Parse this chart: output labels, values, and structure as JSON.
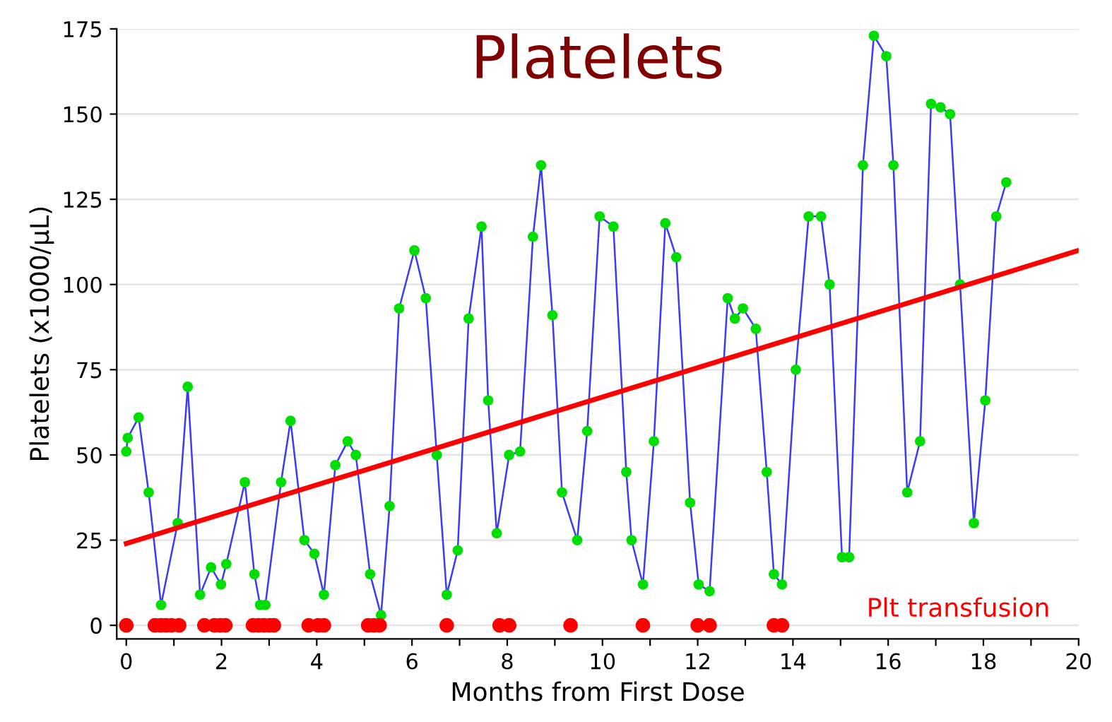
{
  "chart_data": {
    "type": "line",
    "title": "Platelets",
    "xlabel": "Months from First Dose",
    "ylabel": "Platelets (x1000/µL)",
    "xlim": [
      -0.2,
      20
    ],
    "ylim": [
      -4,
      175
    ],
    "xticks": [
      0,
      {
        "value": 1,
        "label": null
      },
      2,
      {
        "value": 3,
        "label": null
      },
      4,
      {
        "value": 5,
        "label": null
      },
      6,
      {
        "value": 7,
        "label": null
      },
      8,
      {
        "value": 9,
        "label": null
      },
      10,
      {
        "value": 11,
        "label": null
      },
      12,
      {
        "value": 13,
        "label": null
      },
      14,
      {
        "value": 15,
        "label": null
      },
      16,
      {
        "value": 17,
        "label": null
      },
      18,
      {
        "value": 19,
        "label": null
      },
      20
    ],
    "yticks": [
      0,
      25,
      50,
      75,
      100,
      125,
      150,
      175
    ],
    "grid": "y",
    "legend": false,
    "series": [
      {
        "color": "#3b3bf5",
        "marker": "circle",
        "x": [
          0,
          0.03,
          0.26,
          0.47,
          0.73,
          1.08,
          1.29,
          1.55,
          1.78,
          1.99,
          2.1,
          2.49,
          2.69,
          2.81,
          2.92,
          3.25,
          3.45,
          3.74,
          3.95,
          4.15,
          4.39,
          4.65,
          4.82,
          5.12,
          5.35,
          5.53,
          5.73,
          6.05,
          6.29,
          6.52,
          6.73,
          6.96,
          7.19,
          7.46,
          7.6,
          7.78,
          8.04,
          8.27,
          8.54,
          8.71,
          8.95,
          9.15,
          9.47,
          9.68,
          9.94,
          10.23,
          10.5,
          10.61,
          10.85,
          11.08,
          11.32,
          11.55,
          11.84,
          12.02,
          12.25,
          12.63,
          12.78,
          12.95,
          13.22,
          13.45,
          13.6,
          13.77,
          14.06,
          14.33,
          14.59,
          14.77,
          15.03,
          15.18,
          15.47,
          15.7,
          15.96,
          16.11,
          16.4,
          16.67,
          16.9,
          17.1,
          17.3,
          17.51,
          17.8,
          18.04,
          18.27,
          18.48
        ],
        "values": [
          51,
          55,
          61,
          39,
          6,
          30,
          70,
          9,
          17,
          12,
          18,
          42,
          15,
          6,
          6,
          42,
          60,
          25,
          21,
          9,
          47,
          54,
          50,
          15,
          3,
          35,
          93,
          110,
          96,
          50,
          9,
          22,
          90,
          117,
          66,
          27,
          50,
          51,
          114,
          135,
          91,
          39,
          25,
          57,
          120,
          117,
          45,
          25,
          12,
          54,
          118,
          108,
          36,
          12,
          10,
          96,
          90,
          93,
          87,
          45,
          15,
          12,
          75,
          120,
          120,
          100,
          20,
          20,
          135,
          173,
          167,
          135,
          39,
          54,
          153,
          152,
          150,
          100,
          30,
          66,
          120,
          130
        ],
        "colors": [
          "#00dd00",
          "#00dd00",
          "#00dd00",
          "#00dd00",
          "#00dd00",
          "#00dd00",
          "#00dd00",
          "#00dd00",
          "#00dd00",
          "#00dd00",
          "#00dd00",
          "#00dd00",
          "#00dd00",
          "#00dd00",
          "#00dd00",
          "#00dd00",
          "#00dd00",
          "#00dd00",
          "#00dd00",
          "#00dd00",
          "#00dd00",
          "#00dd00",
          "#00dd00",
          "#00dd00",
          "#00dd00",
          "#00dd00",
          "#00dd00",
          "#00dd00",
          "#00dd00",
          "#00dd00",
          "#00dd00",
          "#00dd00",
          "#00dd00",
          "#00dd00",
          "#00dd00",
          "#00dd00",
          "#00dd00",
          "#00dd00",
          "#00dd00",
          "#00dd00",
          "#00dd00",
          "#00dd00",
          "#00dd00",
          "#00dd00",
          "#00dd00",
          "#00dd00",
          "#00dd00",
          "#00dd00",
          "#00dd00",
          "#00dd00",
          "#00dd00",
          "#00dd00",
          "#00dd00",
          "#00dd00",
          "#00dd00",
          "#00dd00",
          "#00dd00",
          "#00dd00",
          "#00dd00",
          "#00dd00",
          "#00dd00",
          "#00dd00",
          "#00dd00",
          "#00dd00",
          "#00dd00",
          "#00dd00",
          "#00dd00",
          "#00dd00",
          "#00dd00",
          "#00dd00",
          "#00dd00",
          "#00dd00",
          "#00dd00",
          "#00dd00",
          "#00dd00",
          "#00dd00",
          "#00dd00",
          "#00dd00",
          "#00dd00",
          "#00dd00",
          "#00dd00",
          "#00dd00"
        ]
      },
      {
        "color": "#ff0000",
        "marker": "none",
        "x": [
          0,
          20
        ],
        "values": [
          24,
          110
        ]
      },
      {
        "type": "scatter",
        "name": "Plt transfusion",
        "color": "#ff0000",
        "marker": "circle",
        "x": [
          0,
          0.6,
          0.72,
          0.83,
          0.95,
          1.11,
          1.64,
          1.85,
          1.97,
          2.08,
          2.66,
          2.78,
          2.89,
          3.01,
          3.1,
          3.83,
          4.03,
          4.15,
          5.08,
          5.2,
          5.32,
          6.73,
          7.84,
          8.04,
          9.33,
          10.85,
          12.0,
          12.25,
          13.6,
          13.77
        ],
        "values": [
          0,
          0,
          0,
          0,
          0,
          0,
          0,
          0,
          0,
          0,
          0,
          0,
          0,
          0,
          0,
          0,
          0,
          0,
          0,
          0,
          0,
          0,
          0,
          0,
          0,
          0,
          0,
          0,
          0,
          0
        ]
      }
    ]
  }
}
